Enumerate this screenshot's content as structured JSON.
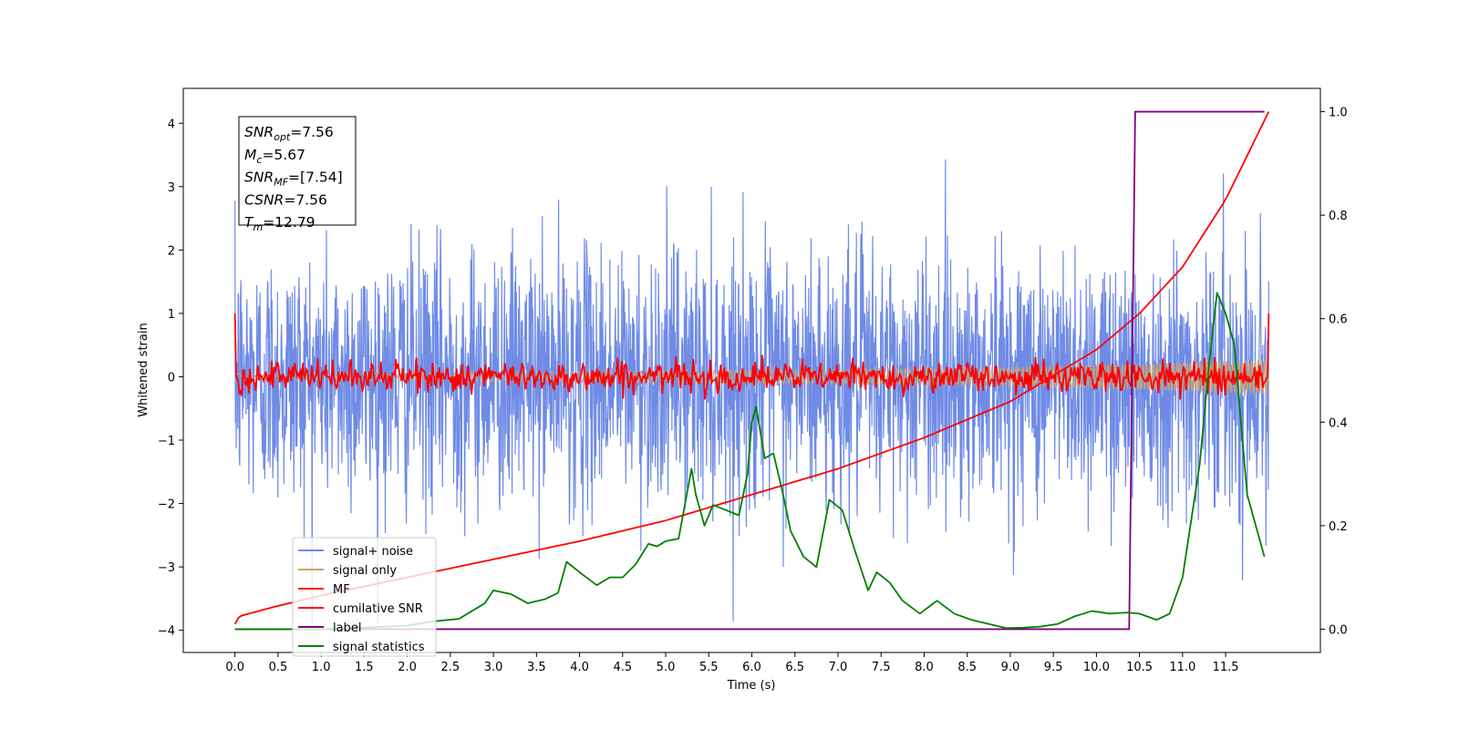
{
  "chart_data": {
    "type": "line",
    "xlabel": "Time (s)",
    "ylabel": "Whitened strain",
    "xlim": [
      -0.6,
      12.6
    ],
    "ylim": [
      -4.35,
      4.55
    ],
    "y2lim": [
      -0.045,
      1.045
    ],
    "x_ticks": [
      "0.0",
      "0.5",
      "1.0",
      "1.5",
      "2.0",
      "2.5",
      "3.0",
      "3.5",
      "4.0",
      "4.5",
      "5.0",
      "5.5",
      "6.0",
      "6.5",
      "7.0",
      "7.5",
      "8.0",
      "8.5",
      "9.0",
      "9.5",
      "10.0",
      "10.5",
      "11.0",
      "11.5"
    ],
    "y_ticks": [
      "−4",
      "−3",
      "−2",
      "−1",
      "0",
      "1",
      "2",
      "3",
      "4"
    ],
    "y2_ticks": [
      "0.0",
      "0.2",
      "0.4",
      "0.6",
      "0.8",
      "1.0"
    ],
    "grid": false,
    "legend_position": "lower-left",
    "annotation": {
      "lines": [
        {
          "sym": "SNR",
          "sub": "opt",
          "val": "=7.56"
        },
        {
          "sym": "M",
          "sub": "c",
          "val": "=5.67"
        },
        {
          "sym": "SNR",
          "sub": "MF",
          "val": "=[7.54]"
        },
        {
          "sym": "CSNR",
          "sub": "",
          "val": "=7.56"
        },
        {
          "sym": "T",
          "sub": "m",
          "val": "=12.79"
        }
      ]
    },
    "colors": {
      "noise": "#6f8be6",
      "signal": "#cfa26b",
      "mf": "#ff0000",
      "csnr": "#ff0000",
      "label": "#800080",
      "stats": "#008000"
    },
    "series": [
      {
        "name": "signal+ noise",
        "key": "noise",
        "note": "dense random whitened noise, std ~1, t in [0, 12.0]"
      },
      {
        "name": "signal only",
        "key": "signal",
        "envelope": {
          "x": [
            0,
            6,
            9,
            10.5,
            12.0
          ],
          "amp": [
            0.05,
            0.1,
            0.14,
            0.2,
            0.27
          ]
        }
      },
      {
        "name": "MF",
        "key": "mf",
        "start_value": 1.0,
        "end_value": 1.0,
        "noise_amp": 0.12
      },
      {
        "name": "cumilative SNR",
        "key": "csnr",
        "axis": "right",
        "x": [
          0,
          0.05,
          0.5,
          1.0,
          2.0,
          3.0,
          4.0,
          5.0,
          6.0,
          7.0,
          8.0,
          9.0,
          10.0,
          10.5,
          11.0,
          11.5,
          12.0
        ],
        "values": [
          0.01,
          0.025,
          0.045,
          0.065,
          0.1,
          0.135,
          0.17,
          0.21,
          0.26,
          0.31,
          0.37,
          0.44,
          0.54,
          0.61,
          0.7,
          0.83,
          1.0
        ]
      },
      {
        "name": "label",
        "key": "label",
        "axis": "right",
        "x": [
          0,
          10.38,
          10.45,
          11.95
        ],
        "values": [
          0,
          0,
          1,
          1
        ]
      },
      {
        "name": "signal statistics",
        "key": "stats",
        "axis": "right",
        "x": [
          0,
          0.5,
          1.0,
          1.5,
          2.0,
          2.3,
          2.6,
          2.9,
          3.0,
          3.2,
          3.4,
          3.6,
          3.75,
          3.85,
          4.0,
          4.2,
          4.35,
          4.5,
          4.65,
          4.8,
          4.9,
          5.0,
          5.15,
          5.3,
          5.35,
          5.45,
          5.55,
          5.7,
          5.85,
          5.95,
          6.0,
          6.05,
          6.15,
          6.25,
          6.35,
          6.45,
          6.6,
          6.75,
          6.9,
          7.05,
          7.2,
          7.35,
          7.45,
          7.6,
          7.75,
          7.95,
          8.15,
          8.35,
          8.55,
          8.75,
          8.95,
          9.15,
          9.35,
          9.55,
          9.75,
          9.95,
          10.15,
          10.35,
          10.5,
          10.7,
          10.85,
          11.0,
          11.1,
          11.2,
          11.3,
          11.4,
          11.5,
          11.6,
          11.75,
          11.85,
          11.95
        ],
        "values": [
          0,
          0,
          0,
          0.003,
          0.007,
          0.015,
          0.02,
          0.05,
          0.075,
          0.068,
          0.05,
          0.058,
          0.07,
          0.13,
          0.11,
          0.085,
          0.1,
          0.1,
          0.125,
          0.165,
          0.16,
          0.17,
          0.175,
          0.31,
          0.26,
          0.2,
          0.24,
          0.23,
          0.22,
          0.3,
          0.4,
          0.43,
          0.33,
          0.34,
          0.27,
          0.19,
          0.14,
          0.12,
          0.25,
          0.23,
          0.15,
          0.075,
          0.11,
          0.09,
          0.055,
          0.03,
          0.055,
          0.03,
          0.018,
          0.01,
          0.002,
          0.003,
          0.005,
          0.01,
          0.025,
          0.035,
          0.03,
          0.032,
          0.03,
          0.018,
          0.03,
          0.1,
          0.21,
          0.32,
          0.5,
          0.65,
          0.61,
          0.55,
          0.26,
          0.2,
          0.14
        ]
      }
    ]
  }
}
